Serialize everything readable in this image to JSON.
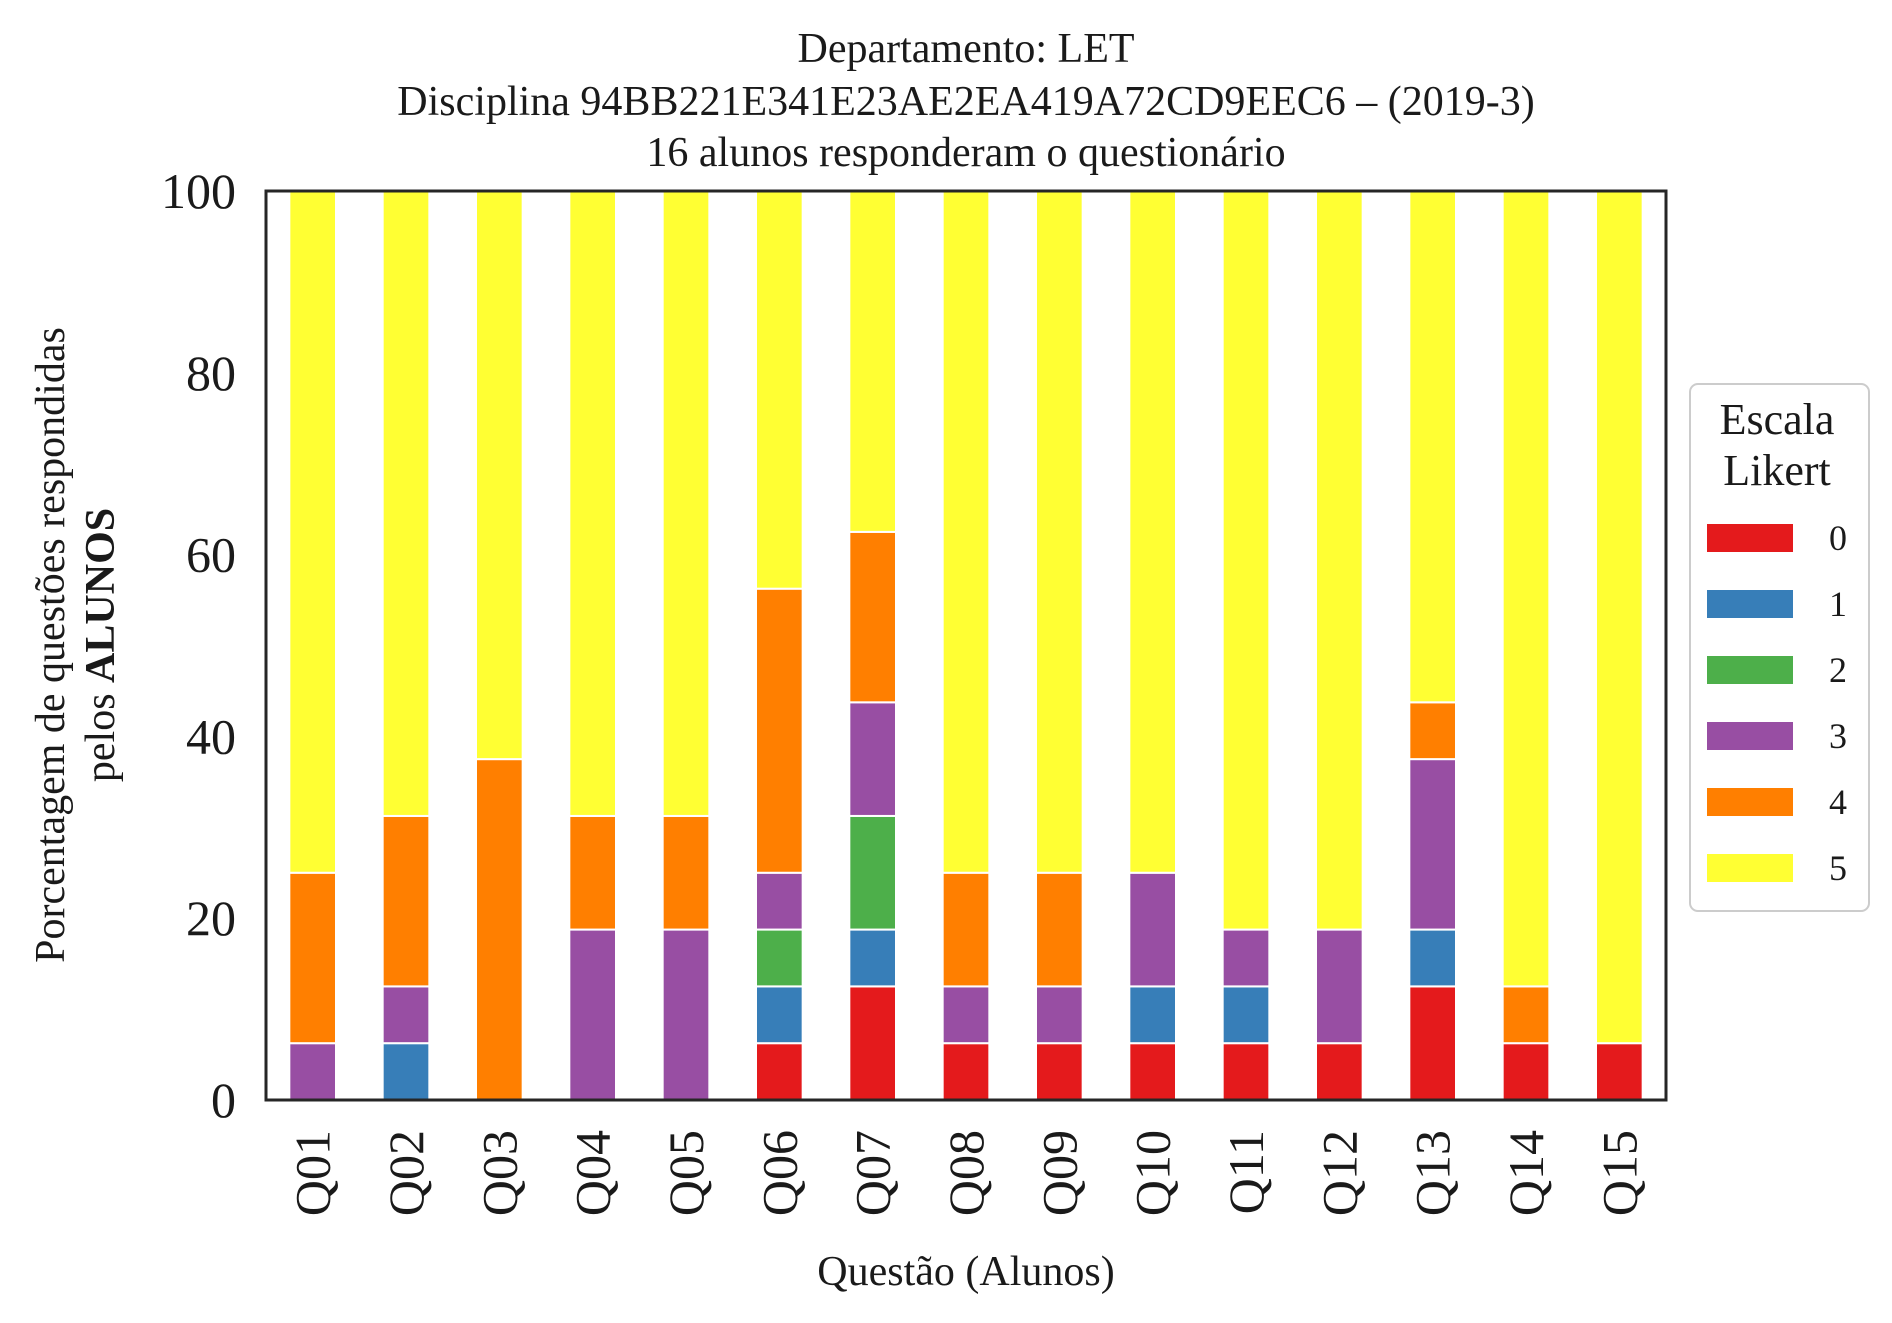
{
  "chart_data": {
    "type": "bar",
    "stacked": true,
    "title_lines": [
      "Departamento: LET",
      "Disciplina 94BB221E341E23AE2EA419A72CD9EEC6 – (2019-3)",
      "16 alunos responderam o questionário"
    ],
    "xlabel": "Questão (Alunos)",
    "ylabel_line1": "Porcentagem de questões respondidas",
    "ylabel_line2_prefix": "pelos ",
    "ylabel_line2_bold": "ALUNOS",
    "ylim": [
      0,
      100
    ],
    "yticks": [
      "0",
      "20",
      "40",
      "60",
      "80",
      "100"
    ],
    "grid": false,
    "legend_position": "right",
    "legend_title_lines": [
      "Escala",
      "Likert"
    ],
    "categories": [
      "Q01",
      "Q02",
      "Q03",
      "Q04",
      "Q05",
      "Q06",
      "Q07",
      "Q08",
      "Q09",
      "Q10",
      "Q11",
      "Q12",
      "Q13",
      "Q14",
      "Q15"
    ],
    "series": [
      {
        "name": "0",
        "color": "#e41a1c",
        "values": [
          0,
          0,
          0,
          0,
          0,
          6.25,
          12.5,
          6.25,
          6.25,
          6.25,
          6.25,
          6.25,
          12.5,
          6.25,
          6.25
        ]
      },
      {
        "name": "1",
        "color": "#377eb8",
        "values": [
          0,
          6.25,
          0,
          0,
          0,
          6.25,
          6.25,
          0,
          0,
          6.25,
          6.25,
          0,
          6.25,
          0,
          0
        ]
      },
      {
        "name": "2",
        "color": "#4daf4a",
        "values": [
          0,
          0,
          0,
          0,
          0,
          6.25,
          12.5,
          0,
          0,
          0,
          0,
          0,
          0,
          0,
          0
        ]
      },
      {
        "name": "3",
        "color": "#984ea3",
        "values": [
          6.25,
          6.25,
          0,
          18.75,
          18.75,
          6.25,
          12.5,
          6.25,
          6.25,
          12.5,
          6.25,
          12.5,
          18.75,
          0,
          0
        ]
      },
      {
        "name": "4",
        "color": "#ff7f00",
        "values": [
          18.75,
          18.75,
          37.5,
          12.5,
          12.5,
          31.25,
          18.75,
          12.5,
          12.5,
          0,
          0,
          0,
          6.25,
          6.25,
          0
        ]
      },
      {
        "name": "5",
        "color": "#ffff33",
        "values": [
          75,
          68.75,
          62.5,
          68.75,
          68.75,
          43.75,
          37.5,
          75,
          75,
          75,
          81.25,
          81.25,
          56.25,
          87.5,
          93.75
        ]
      }
    ]
  }
}
